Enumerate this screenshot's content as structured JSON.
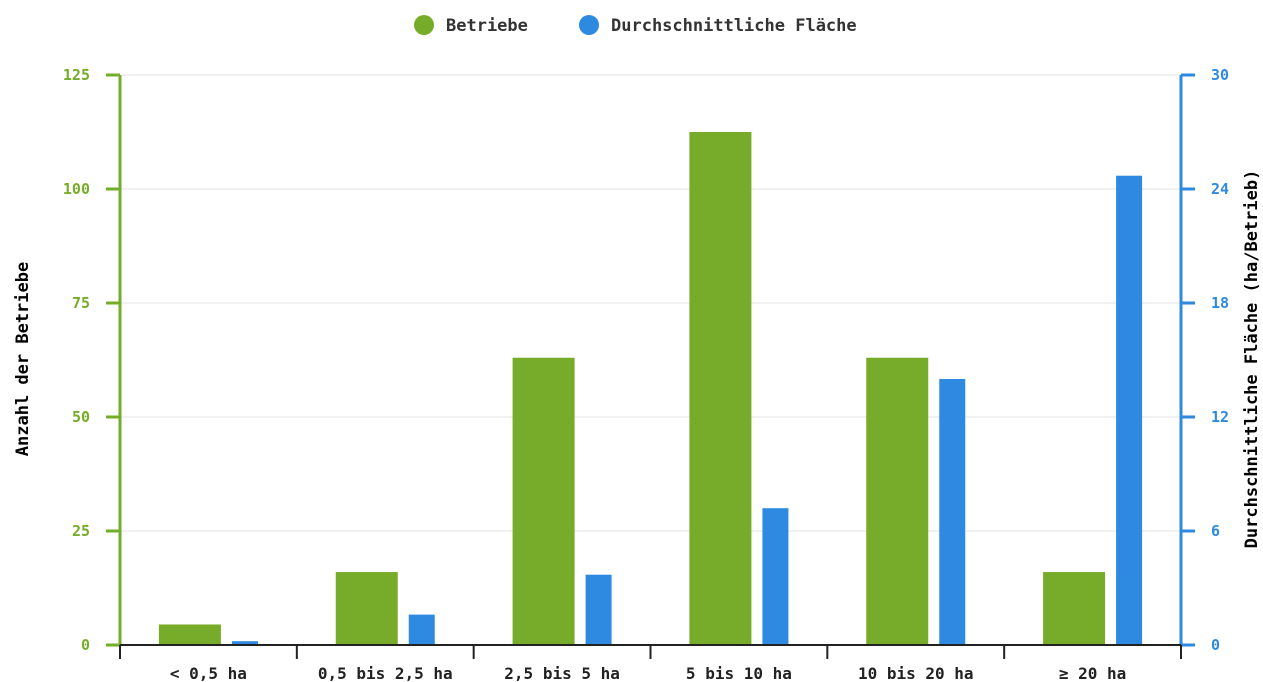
{
  "chart_data": {
    "type": "bar",
    "categories": [
      "< 0,5 ha",
      "0,5 bis 2,5 ha",
      "2,5 bis 5 ha",
      "5 bis 10 ha",
      "10 bis 20 ha",
      "≥ 20 ha"
    ],
    "series": [
      {
        "name": "Betriebe",
        "axis": "left",
        "color": "#76ac29",
        "values": [
          4.5,
          16,
          63,
          112.5,
          63,
          16
        ]
      },
      {
        "name": "Durchschnittliche Fläche",
        "axis": "right",
        "color": "#2e8ae0",
        "values": [
          0.2,
          1.6,
          3.7,
          7.2,
          14,
          24.7
        ]
      }
    ],
    "ylabel_left": "Anzahl der Betriebe",
    "ylabel_right": "Durchschnittliche Fläche (ha/Betrieb)",
    "ylim_left": [
      0,
      125
    ],
    "yticks_left": [
      "0",
      "25",
      "50",
      "75",
      "100",
      "125"
    ],
    "ylim_right": [
      0,
      30
    ],
    "yticks_right": [
      "0",
      "6",
      "12",
      "18",
      "24",
      "30"
    ],
    "grid": true,
    "legend_position": "top-center",
    "axis_colors": {
      "left": "#76ac29",
      "right": "#2e8ae0",
      "x": "#222222",
      "grid": "#e3e3e3"
    }
  }
}
